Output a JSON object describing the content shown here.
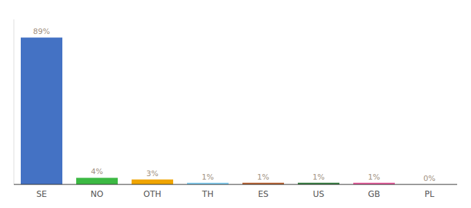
{
  "chart_data": {
    "type": "bar",
    "categories": [
      "SE",
      "NO",
      "OTH",
      "TH",
      "ES",
      "US",
      "GB",
      "PL"
    ],
    "values": [
      89,
      4,
      3,
      1,
      1,
      1,
      1,
      0
    ],
    "value_labels": [
      "89%",
      "4%",
      "3%",
      "1%",
      "1%",
      "1%",
      "1%",
      "0%"
    ],
    "colors": [
      "#4472c4",
      "#3cb943",
      "#f0a500",
      "#7ecef4",
      "#b85c2a",
      "#2d7a3a",
      "#e8559a",
      "#dddddd"
    ],
    "ylim": [
      0,
      100
    ],
    "data_labels": true,
    "tick_labels": "x",
    "grid": false
  }
}
